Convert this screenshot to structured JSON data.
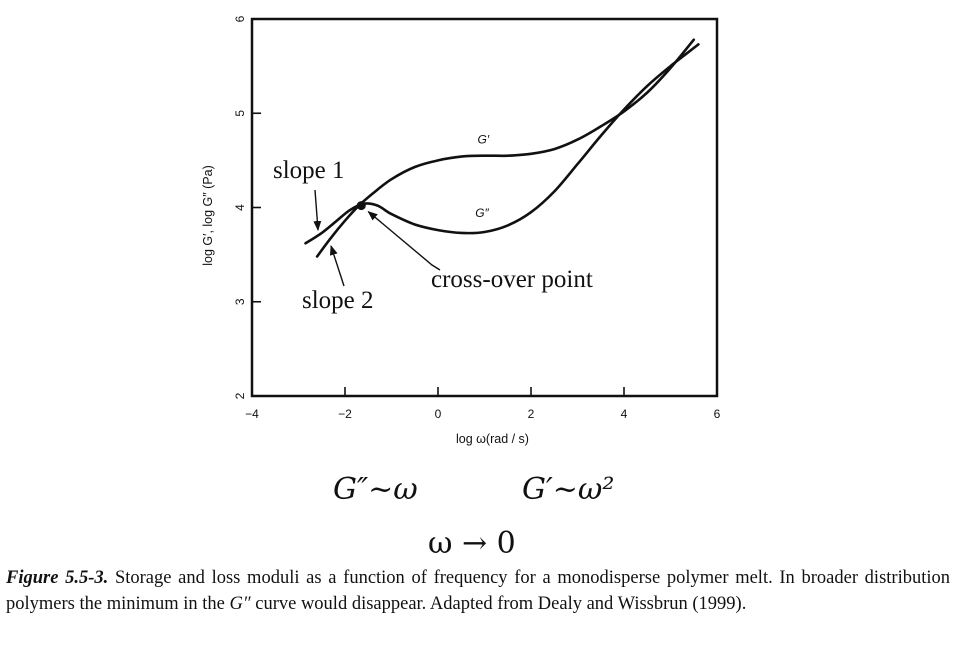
{
  "chart_data": {
    "type": "line",
    "xlabel": "log ω(rad / s)",
    "ylabel": "log G′, log G″ (Pa)",
    "xlim": [
      -4,
      6
    ],
    "ylim": [
      2,
      6
    ],
    "x_ticks": [
      -4,
      -2,
      0,
      2,
      4,
      6
    ],
    "y_ticks": [
      2,
      3,
      4,
      5,
      6
    ],
    "x_tick_labels": [
      "−4",
      "−2",
      "0",
      "2",
      "4",
      "6"
    ],
    "y_tick_labels": [
      "2",
      "3",
      "4",
      "5",
      "6"
    ],
    "grid": false,
    "series": [
      {
        "name": "G′",
        "x": [
          -2.6,
          -2.3,
          -2.0,
          -1.7,
          -1.4,
          -1.0,
          -0.5,
          0.0,
          0.5,
          1.0,
          1.5,
          2.0,
          2.5,
          3.0,
          3.5,
          4.0,
          4.5,
          5.0,
          5.5
        ],
        "y": [
          3.48,
          3.68,
          3.86,
          4.02,
          4.15,
          4.3,
          4.43,
          4.5,
          4.54,
          4.55,
          4.55,
          4.57,
          4.62,
          4.72,
          4.86,
          5.02,
          5.22,
          5.48,
          5.78
        ]
      },
      {
        "name": "G″",
        "x": [
          -2.85,
          -2.5,
          -2.2,
          -1.9,
          -1.6,
          -1.3,
          -1.0,
          -0.5,
          0.0,
          0.5,
          1.0,
          1.5,
          2.0,
          2.5,
          3.0,
          3.5,
          4.0,
          4.5,
          5.0,
          5.6
        ],
        "y": [
          3.62,
          3.73,
          3.85,
          3.97,
          4.04,
          4.02,
          3.93,
          3.82,
          3.76,
          3.73,
          3.74,
          3.81,
          3.95,
          4.17,
          4.46,
          4.76,
          5.04,
          5.29,
          5.5,
          5.73
        ]
      }
    ],
    "crossover_point": {
      "x": -1.65,
      "y": 4.02
    },
    "curve_labels": {
      "g_prime": "G′",
      "g_double_prime": "G″"
    },
    "annotations": {
      "slope1": "slope 1",
      "slope2": "slope 2",
      "crossover": "cross-over point"
    }
  },
  "equations": {
    "g_double_prime": "G″~ω",
    "g_prime": "G′~ω²",
    "limit": "ω → 0"
  },
  "caption": {
    "label": "Figure 5.5-3.",
    "part1": " Storage and loss moduli as a function of frequency for a monodisperse polymer melt. In broader distribution polymers the minimum in the ",
    "symbol": "G″",
    "part2": " curve would disappear. Adapted from Dealy and Wissbrun (1999)."
  }
}
